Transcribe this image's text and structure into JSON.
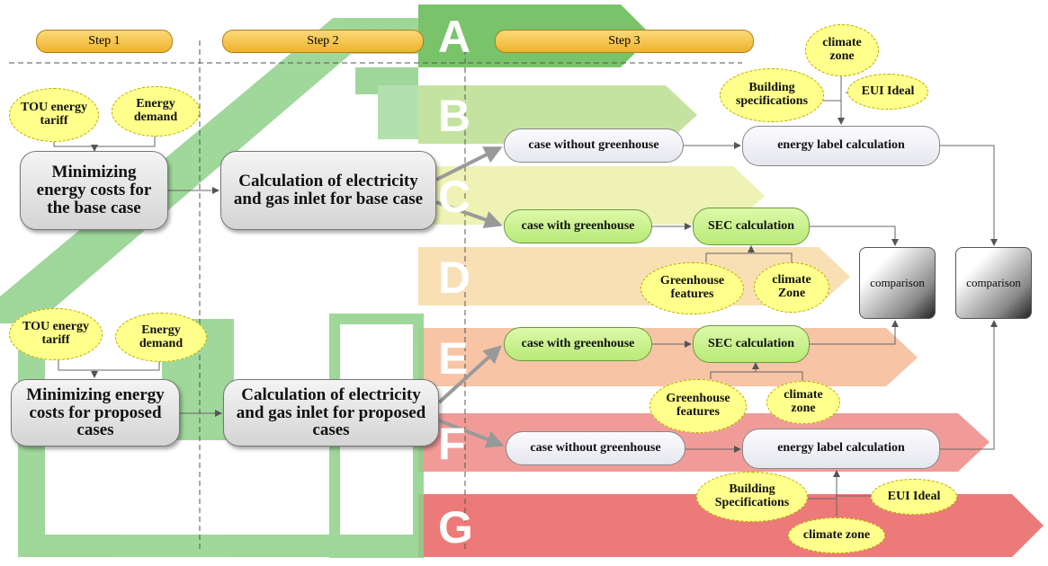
{
  "steps": [
    "Step 1",
    "Step 2",
    "Step 3"
  ],
  "energy_labels": [
    "A",
    "B",
    "C",
    "D",
    "E",
    "F",
    "G"
  ],
  "nodes": [
    {
      "label": "TOU energy tariff"
    },
    {
      "label": "Energy demand"
    },
    {
      "label": "Minimizing energy costs for the base case"
    },
    {
      "label": "Calculation of electricity and gas inlet for base case"
    },
    {
      "label": "case without greenhouse"
    },
    {
      "label": "energy label calculation"
    },
    {
      "label": "climate zone"
    },
    {
      "label": "Building specifications"
    },
    {
      "label": "EUI Ideal"
    },
    {
      "label": "case with greenhouse"
    },
    {
      "label": "SEC calculation"
    },
    {
      "label": "Greenhouse features"
    },
    {
      "label": "climate Zone"
    },
    {
      "label": "comparison"
    },
    {
      "label": "comparison"
    },
    {
      "label": "TOU energy tariff"
    },
    {
      "label": "Energy demand"
    },
    {
      "label": "Minimizing energy costs for proposed cases"
    },
    {
      "label": "Calculation of electricity and gas inlet for proposed cases"
    },
    {
      "label": "case with greenhouse"
    },
    {
      "label": "SEC calculation"
    },
    {
      "label": "Greenhouse features"
    },
    {
      "label": "climate zone"
    },
    {
      "label": "case without greenhouse"
    },
    {
      "label": "energy label calculation"
    },
    {
      "label": "Building Specifications"
    },
    {
      "label": "EUI Ideal"
    },
    {
      "label": "climate zone"
    }
  ]
}
